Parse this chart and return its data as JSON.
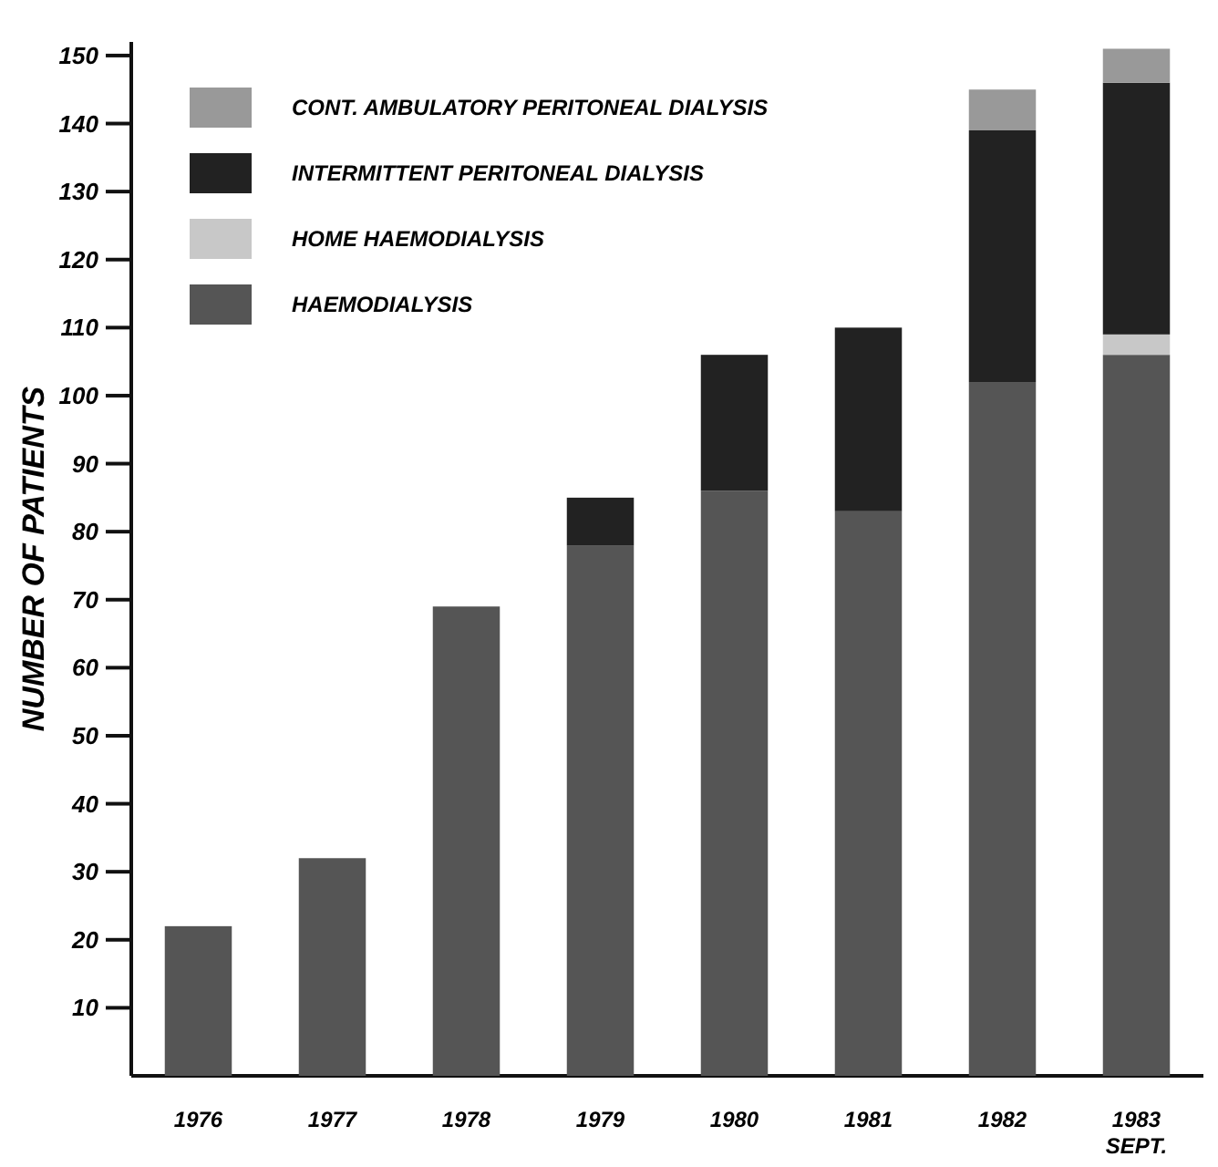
{
  "chart_data": {
    "type": "bar",
    "stacked": true,
    "ylabel": "NUMBER OF PATIENTS",
    "categories": [
      "1976",
      "1977",
      "1978",
      "1979",
      "1980",
      "1981",
      "1982",
      "1983\nSEPT."
    ],
    "series": [
      {
        "name": "HAEMODIALYSIS",
        "color": "#555555",
        "values": [
          22,
          32,
          69,
          78,
          86,
          83,
          102,
          106
        ]
      },
      {
        "name": "HOME HAEMODIALYSIS",
        "color": "#c8c8c8",
        "values": [
          null,
          null,
          null,
          null,
          null,
          null,
          null,
          3
        ]
      },
      {
        "name": "INTERMITTENT PERITONEAL DIALYSIS",
        "color": "#222222",
        "values": [
          null,
          null,
          null,
          7,
          20,
          27,
          37,
          37
        ]
      },
      {
        "name": "CONT. AMBULATORY PERITONEAL DIALYSIS",
        "color": "#999999",
        "values": [
          null,
          null,
          null,
          null,
          null,
          null,
          6,
          5
        ]
      }
    ],
    "ylim": [
      0,
      152
    ],
    "yticks": [
      10,
      20,
      30,
      40,
      50,
      60,
      70,
      80,
      90,
      100,
      110,
      120,
      130,
      140,
      150
    ],
    "legend": "top left"
  }
}
